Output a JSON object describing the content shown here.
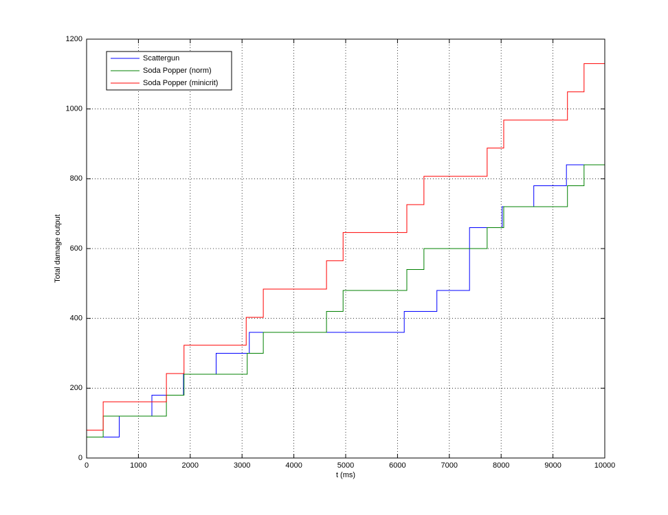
{
  "chart_data": {
    "type": "line",
    "drawstyle": "steps-post",
    "xlabel": "t (ms)",
    "ylabel": "Total damage output",
    "xlim": [
      0,
      10000
    ],
    "ylim": [
      0,
      1200
    ],
    "xticks": [
      0,
      1000,
      2000,
      3000,
      4000,
      5000,
      6000,
      7000,
      8000,
      9000,
      10000
    ],
    "yticks": [
      0,
      200,
      400,
      600,
      800,
      1000,
      1200
    ],
    "grid": true,
    "legend": "upper-left",
    "series": [
      {
        "name": "Scattergun",
        "color": "#0000ff",
        "x": [
          0,
          630,
          1260,
          1870,
          2500,
          3140,
          6130,
          6760,
          7390,
          8020,
          8630,
          9260,
          9600
        ],
        "values": [
          60,
          120,
          180,
          240,
          300,
          360,
          420,
          480,
          660,
          720,
          780,
          840,
          840
        ]
      },
      {
        "name": "Soda Popper (norm)",
        "color": "#008000",
        "x": [
          0,
          320,
          1540,
          1880,
          3100,
          3410,
          4630,
          4950,
          6180,
          6510,
          7730,
          8050,
          9280,
          9600,
          10000
        ],
        "values": [
          60,
          120,
          180,
          240,
          300,
          360,
          420,
          480,
          540,
          600,
          660,
          720,
          780,
          840,
          840
        ]
      },
      {
        "name": "Soda Popper (minicrit)",
        "color": "#ff0000",
        "x": [
          0,
          320,
          1540,
          1880,
          3080,
          3410,
          4630,
          4950,
          6180,
          6510,
          7730,
          8050,
          9280,
          9600,
          10000
        ],
        "values": [
          80,
          161,
          242,
          323,
          403,
          484,
          565,
          646,
          726,
          807,
          888,
          968,
          1049,
          1130,
          1130
        ]
      }
    ]
  }
}
